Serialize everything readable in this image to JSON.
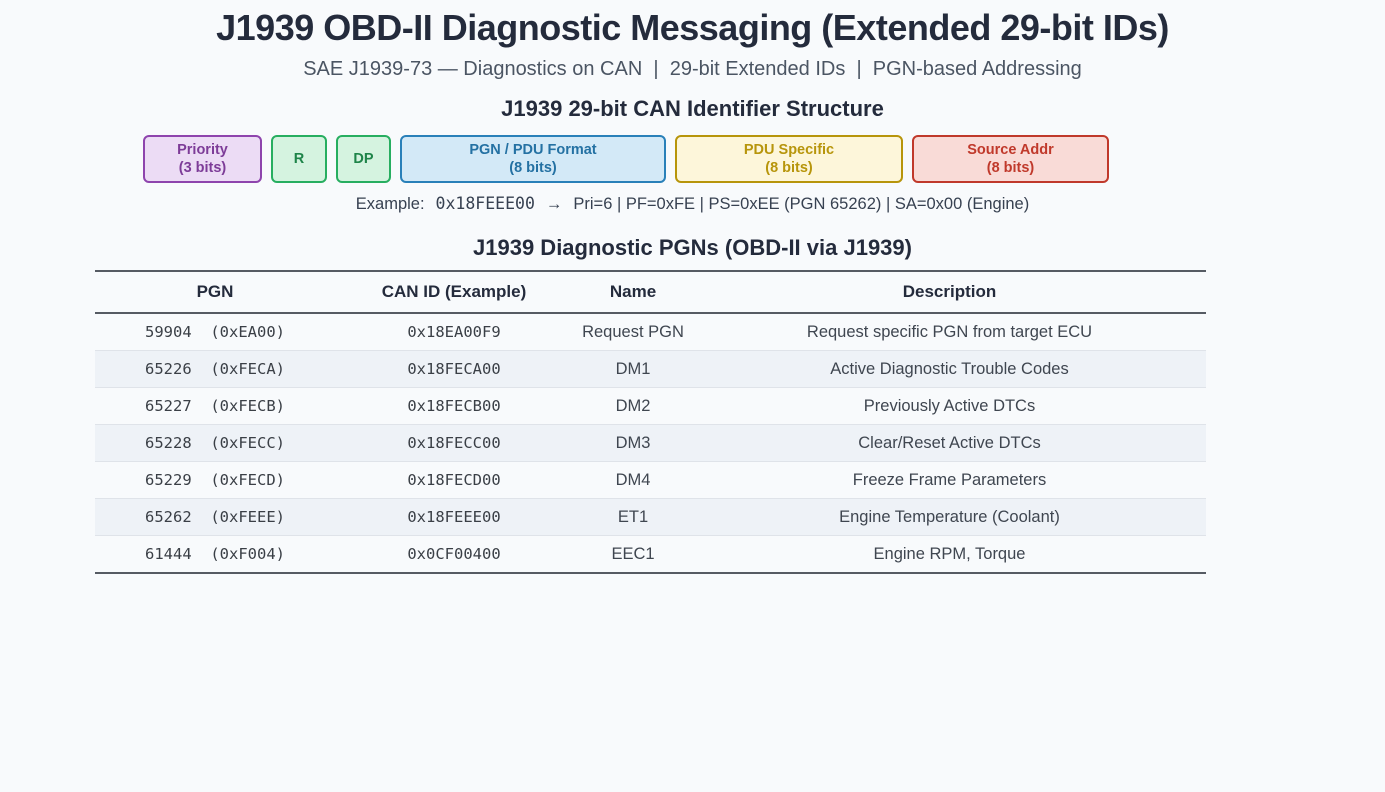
{
  "page": {
    "title": "J1939 OBD-II Diagnostic Messaging (Extended 29-bit IDs)",
    "subtitle": "SAE J1939-73 — Diagnostics on CAN  |  29-bit Extended IDs  |  PGN-based Addressing"
  },
  "identifier_structure": {
    "heading": "J1939 29-bit CAN Identifier Structure",
    "fields": [
      {
        "label": "Priority",
        "bits": "(3 bits)",
        "bg": "#ecdcf5",
        "border": "#8e44ad",
        "text": "#7d3c98"
      },
      {
        "label": "R",
        "bits": "",
        "bg": "#d5f3e0",
        "border": "#27ae60",
        "text": "#1e8449"
      },
      {
        "label": "DP",
        "bits": "",
        "bg": "#d5f3e0",
        "border": "#27ae60",
        "text": "#1e8449"
      },
      {
        "label": "PGN / PDU Format",
        "bits": "(8 bits)",
        "bg": "#d3e9f7",
        "border": "#2980b9",
        "text": "#2471a3"
      },
      {
        "label": "PDU Specific",
        "bits": "(8 bits)",
        "bg": "#fdf6da",
        "border": "#b7950b",
        "text": "#b7950b"
      },
      {
        "label": "Source Addr",
        "bits": "(8 bits)",
        "bg": "#f9dbd7",
        "border": "#c0392b",
        "text": "#c0392b"
      }
    ],
    "example": {
      "prefix": "Example:",
      "can_id": "0x18FEEE00",
      "arrow": "→",
      "breakdown": "Pri=6 | PF=0xFE | PS=0xEE (PGN 65262) | SA=0x00 (Engine)"
    }
  },
  "pgn_table": {
    "heading": "J1939 Diagnostic PGNs (OBD-II via J1939)",
    "columns": [
      "PGN",
      "CAN ID (Example)",
      "Name",
      "Description"
    ],
    "rows": [
      {
        "pgn": "59904  (0xEA00)",
        "can_id": "0x18EA00F9",
        "name": "Request PGN",
        "description": "Request specific PGN from target ECU"
      },
      {
        "pgn": "65226  (0xFECA)",
        "can_id": "0x18FECA00",
        "name": "DM1",
        "description": "Active Diagnostic Trouble Codes"
      },
      {
        "pgn": "65227  (0xFECB)",
        "can_id": "0x18FECB00",
        "name": "DM2",
        "description": "Previously Active DTCs"
      },
      {
        "pgn": "65228  (0xFECC)",
        "can_id": "0x18FECC00",
        "name": "DM3",
        "description": "Clear/Reset Active DTCs"
      },
      {
        "pgn": "65229  (0xFECD)",
        "can_id": "0x18FECD00",
        "name": "DM4",
        "description": "Freeze Frame Parameters"
      },
      {
        "pgn": "65262  (0xFEEE)",
        "can_id": "0x18FEEE00",
        "name": "ET1",
        "description": "Engine Temperature (Coolant)"
      },
      {
        "pgn": "61444  (0xF004)",
        "can_id": "0x0CF00400",
        "name": "EEC1",
        "description": "Engine RPM, Torque"
      }
    ]
  },
  "colors": {
    "page_background": "#f8fafc",
    "heading_text": "#242b3c",
    "subtitle_text": "#4b5563",
    "body_text": "#3f4650",
    "table_rule": "#565b63",
    "row_separator": "#dfe3e9",
    "row_alt_background": "#eef2f7"
  }
}
